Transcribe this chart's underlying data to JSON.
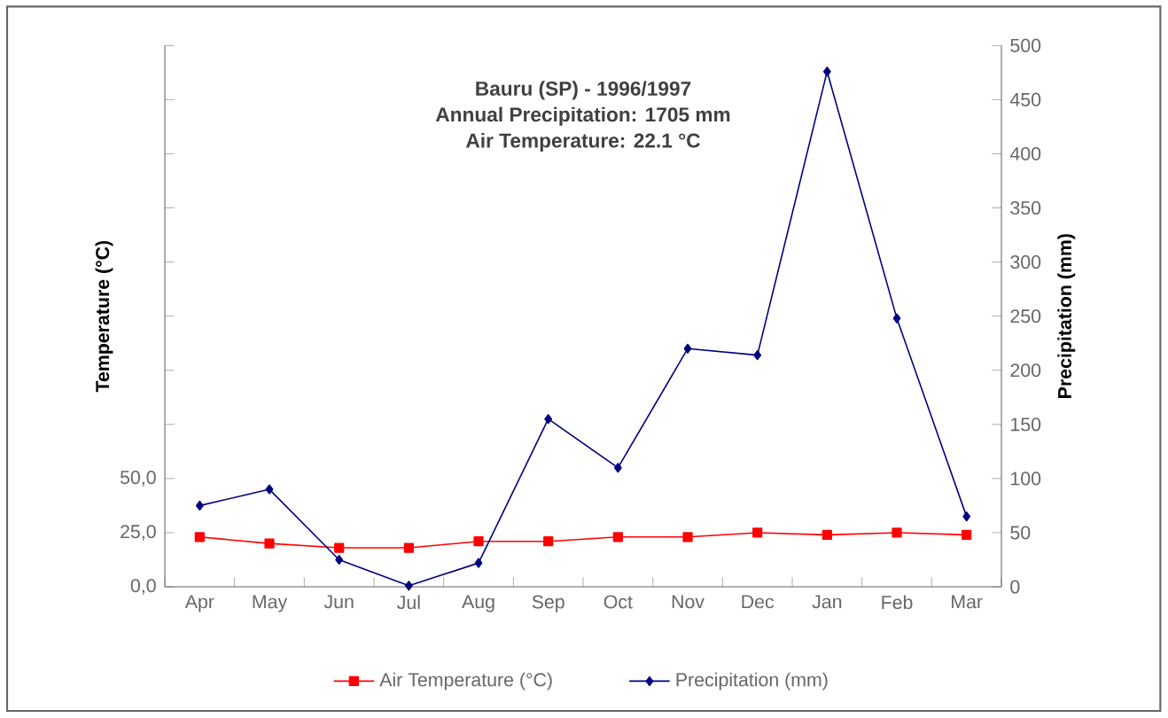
{
  "chart_data": {
    "type": "line",
    "title": "Bauru (SP) - 1996/1997",
    "annotations": [
      "Annual Precipitation: 1705 mm",
      "Air Temperature: 22.1 °C"
    ],
    "ylabel": "Temperature (°C)",
    "y2label": "Precipitation (mm)",
    "categories": [
      "Apr",
      "May",
      "Jun",
      "Jul",
      "Aug",
      "Sep",
      "Oct",
      "Nov",
      "Dec",
      "Jan",
      "Feb",
      "Mar"
    ],
    "series": [
      {
        "name": "Air Temperature (°C)",
        "color": "#ff0000",
        "marker": "square",
        "values": [
          23,
          20,
          18,
          18,
          21,
          21,
          23,
          23,
          25,
          24,
          25,
          24
        ]
      },
      {
        "name": "Precipitation (mm)",
        "color": "#000080",
        "marker": "diamond",
        "axis": "y2",
        "values": [
          75,
          90,
          25,
          1,
          22,
          155,
          110,
          220,
          214,
          476,
          248,
          65
        ]
      }
    ],
    "ylim": [
      0,
      250
    ],
    "yticks": [
      {
        "value": 0,
        "label": "0,0"
      },
      {
        "value": 25,
        "label": "25,0"
      },
      {
        "value": 50,
        "label": "50,0"
      },
      {
        "value": 75,
        "label": null
      },
      {
        "value": 100,
        "label": null
      },
      {
        "value": 125,
        "label": null
      },
      {
        "value": 150,
        "label": null
      },
      {
        "value": 175,
        "label": null
      },
      {
        "value": 200,
        "label": null
      },
      {
        "value": 225,
        "label": null
      },
      {
        "value": 250,
        "label": null
      }
    ],
    "y2lim": [
      0,
      500
    ],
    "y2ticks": [
      0,
      50,
      100,
      150,
      200,
      250,
      300,
      350,
      400,
      450,
      500
    ],
    "grid": false,
    "legend": "bottom"
  }
}
